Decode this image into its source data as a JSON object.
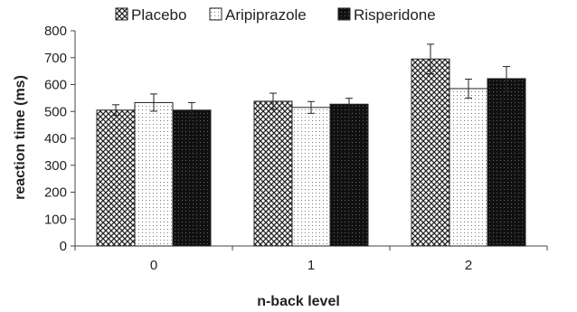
{
  "chart_data": {
    "type": "bar",
    "categories": [
      "0",
      "1",
      "2"
    ],
    "series": [
      {
        "name": "Placebo",
        "values": [
          505,
          538,
          695
        ],
        "errors": [
          20,
          30,
          55
        ],
        "pattern": "crosshatch"
      },
      {
        "name": "Aripiprazole",
        "values": [
          533,
          515,
          585
        ],
        "errors": [
          32,
          22,
          35
        ],
        "pattern": "dots"
      },
      {
        "name": "Risperidone",
        "values": [
          505,
          527,
          622
        ],
        "errors": [
          28,
          22,
          45
        ],
        "pattern": "dense-black"
      }
    ],
    "title": "",
    "xlabel": "n-back level",
    "ylabel": "reaction time (ms)",
    "ylim": [
      0,
      800
    ],
    "yticks": [
      "0",
      "100",
      "200",
      "300",
      "400",
      "500",
      "600",
      "700",
      "800"
    ],
    "grid": false,
    "legend_position": "top"
  }
}
